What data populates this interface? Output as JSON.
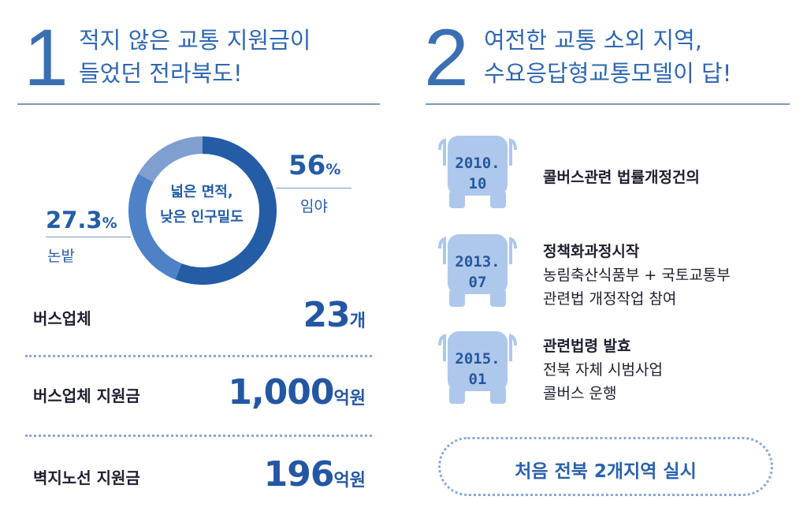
{
  "left_section": {
    "number": "1",
    "title_lines": [
      "적지 않은 교통 지원금이",
      "들었던 전라북도!"
    ]
  },
  "right_section": {
    "number": "2",
    "title_lines": [
      "여전한 교통 소외 지역,",
      "수요응답형교통모델이 답!"
    ]
  },
  "chart_data": {
    "type": "pie",
    "center_label_lines": [
      "넓은 면적,",
      "낮은 인구밀도"
    ],
    "slices": [
      {
        "name": "임야",
        "value": 56,
        "display": "56",
        "unit": "%",
        "color": "#245ca5"
      },
      {
        "name": "논밭",
        "value": 27.3,
        "display": "27.3",
        "unit": "%",
        "color": "#4d82c6"
      },
      {
        "name": "",
        "value": 16.7,
        "display": "",
        "unit": "",
        "color": "#7f9fd1"
      }
    ]
  },
  "stats": [
    {
      "label": "버스업체",
      "value": "23",
      "unit": "개"
    },
    {
      "label": "버스업체 지원금",
      "value": "1,000",
      "unit": "억원"
    },
    {
      "label": "벽지노선 지원금",
      "value": "196",
      "unit": "억원"
    }
  ],
  "timeline": [
    {
      "date_lines": [
        "2010.",
        "10"
      ],
      "title": "콜버스관련 법률개정건의",
      "details": []
    },
    {
      "date_lines": [
        "2013.",
        "07"
      ],
      "title": "정책화과정시작",
      "details": [
        "농림축산식품부 + 국토교통부",
        "관련법 개정작업 참여"
      ]
    },
    {
      "date_lines": [
        "2015.",
        "01"
      ],
      "title": "관련법령 발효",
      "details": [
        "전북 자체 시범사업",
        "콜버스 운행"
      ]
    }
  ],
  "callout": "처음 전북 2개지역 실시",
  "colors": {
    "accent": "#2f67b0",
    "bus": "#aec8ec",
    "rule": "#7e98c2",
    "dots": "#8aa8d4"
  }
}
